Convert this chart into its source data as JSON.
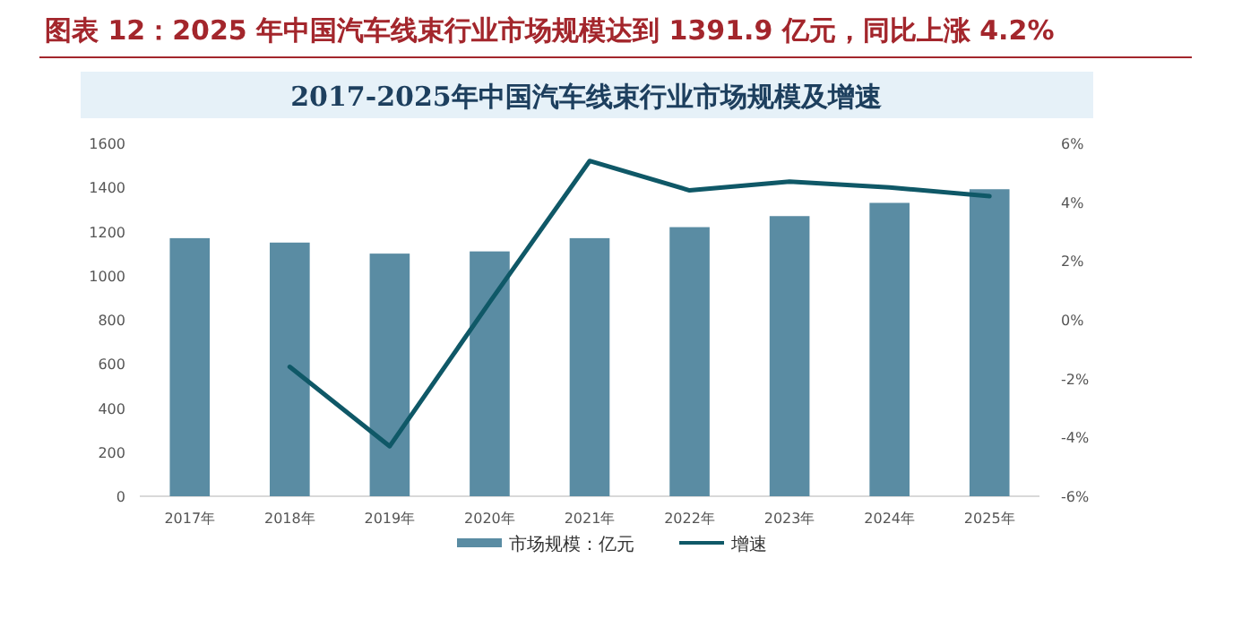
{
  "chart_data": {
    "type": "bar",
    "title": "图表 12：2025 年中国汽车线束行业市场规模达到 1391.9 亿元，同比上涨 4.2%",
    "subtitle": "2017-2025年中国汽车线束行业市场规模及增速",
    "categories": [
      "2017年",
      "2018年",
      "2019年",
      "2020年",
      "2021年",
      "2022年",
      "2023年",
      "2024年",
      "2025年"
    ],
    "series": [
      {
        "name": "市场规模：亿元",
        "color": "#5a8ca3",
        "values": [
          1170,
          1150,
          1100,
          1110,
          1170,
          1220,
          1270,
          1330,
          1391.9
        ]
      },
      {
        "name": "增速",
        "type": "line",
        "axis": "y2",
        "color": "#0f5867",
        "values": [
          null,
          -1.6,
          -4.3,
          0.6,
          5.4,
          4.4,
          4.7,
          4.5,
          4.2
        ]
      }
    ],
    "ylim": [
      0,
      1600
    ],
    "yticks": [
      0,
      200,
      400,
      600,
      800,
      1000,
      1200,
      1400,
      1600
    ],
    "y2lim": [
      -6,
      6
    ],
    "y2ticks": [
      {
        "value": -6,
        "label": "-6%"
      },
      {
        "value": -4,
        "label": "-4%"
      },
      {
        "value": -2,
        "label": "-2%"
      },
      {
        "value": 0,
        "label": "0%"
      },
      {
        "value": 2,
        "label": "2%"
      },
      {
        "value": 4,
        "label": "4%"
      },
      {
        "value": 6,
        "label": "6%"
      }
    ],
    "grid": false,
    "legend": "bottom",
    "marker": "none",
    "line_style": "solid"
  }
}
